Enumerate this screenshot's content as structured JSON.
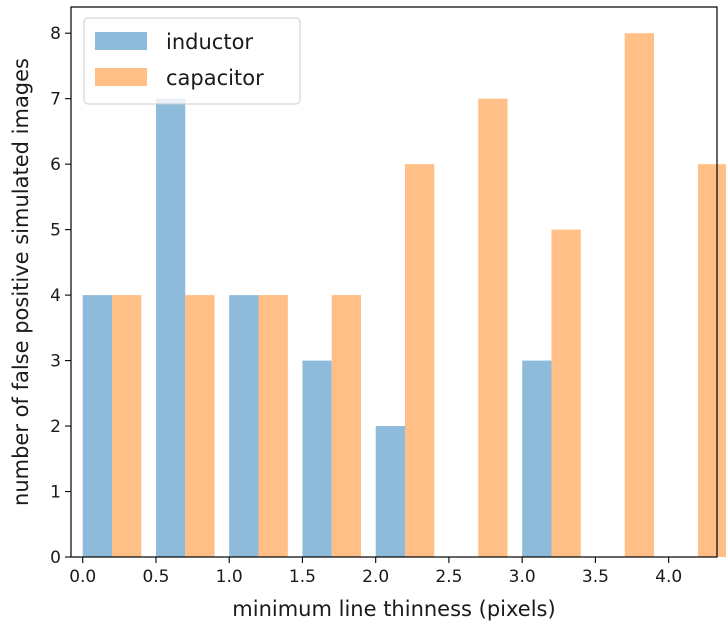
{
  "chart_data": {
    "type": "bar",
    "xlabel": "minimum line thinness (pixels)",
    "ylabel": "number of false positive simulated images",
    "xlim": [
      -0.08,
      4.33
    ],
    "ylim": [
      0,
      8.4
    ],
    "xticks": [
      "0.0",
      "0.5",
      "1.0",
      "1.5",
      "2.0",
      "2.5",
      "3.0",
      "3.5",
      "4.0"
    ],
    "yticks": [
      "0",
      "1",
      "2",
      "3",
      "4",
      "5",
      "6",
      "7",
      "8"
    ],
    "bar_width": 0.2,
    "legend_position": "top-left",
    "series": [
      {
        "name": "inductor",
        "color": "#8fbbda",
        "x": [
          0.2,
          0.7,
          1.2,
          1.7,
          2.2,
          2.7,
          3.2,
          3.7,
          4.2
        ],
        "values": [
          4,
          7,
          4,
          3,
          2,
          0,
          3,
          0,
          0
        ]
      },
      {
        "name": "capacitor",
        "color": "#ffbf86",
        "x": [
          0.2,
          0.7,
          1.2,
          1.7,
          2.2,
          2.7,
          3.2,
          3.7,
          4.2
        ],
        "values": [
          4,
          4,
          4,
          4,
          6,
          7,
          5,
          8,
          6
        ]
      }
    ]
  }
}
